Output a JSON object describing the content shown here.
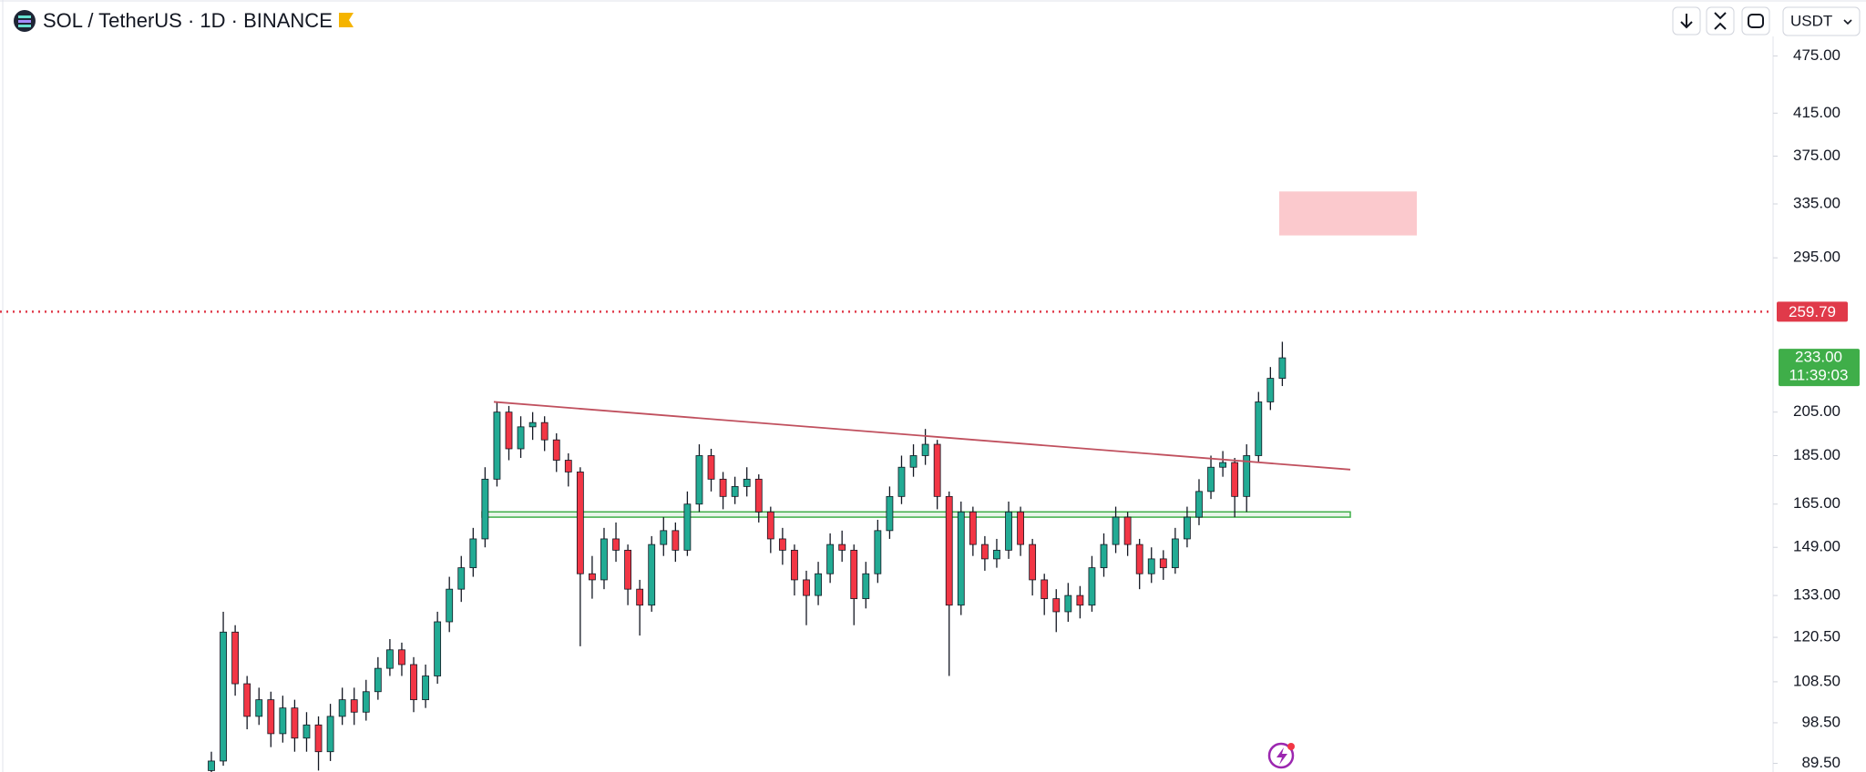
{
  "chart_data": {
    "type": "candlestick",
    "title": "SOL / TetherUS · 1D · BINANCE",
    "currency": "USDT",
    "log_scale": true,
    "up_color": "#22ab94",
    "down_color": "#f23645",
    "ylim": [
      87.7,
      542
    ],
    "yticks": [
      {
        "value": 475,
        "label": "475.00"
      },
      {
        "value": 415,
        "label": "415.00"
      },
      {
        "value": 375,
        "label": "375.00"
      },
      {
        "value": 335,
        "label": "335.00"
      },
      {
        "value": 295,
        "label": "295.00"
      },
      {
        "value": 205,
        "label": "205.00"
      },
      {
        "value": 185,
        "label": "185.00"
      },
      {
        "value": 165,
        "label": "165.00"
      },
      {
        "value": 149,
        "label": "149.00"
      },
      {
        "value": 133,
        "label": "133.00"
      },
      {
        "value": 120.5,
        "label": "120.50"
      },
      {
        "value": 108.5,
        "label": "108.50"
      },
      {
        "value": 98.5,
        "label": "98.50"
      },
      {
        "value": 89.5,
        "label": "89.50"
      }
    ],
    "open": [
      88,
      90,
      122,
      108,
      100,
      104,
      96,
      102,
      95,
      98,
      92,
      100,
      104,
      101,
      106,
      112,
      117,
      113,
      104,
      110,
      125,
      135,
      142,
      152,
      175,
      205,
      188,
      198,
      200,
      192,
      183,
      178,
      140,
      138,
      152,
      148,
      135,
      130,
      150,
      155,
      148,
      165,
      185,
      175,
      168,
      172,
      175,
      162,
      152,
      148,
      138,
      133,
      140,
      150,
      148,
      132,
      140,
      155,
      168,
      180,
      185,
      190,
      168,
      130,
      162,
      150,
      145,
      148,
      162,
      150,
      138,
      132,
      128,
      133,
      130,
      142,
      150,
      160,
      150,
      140,
      145,
      142,
      152,
      160,
      170,
      180,
      182,
      168,
      185,
      210,
      222
    ],
    "high": [
      92,
      128,
      124,
      110,
      107,
      106,
      105,
      104,
      101,
      100,
      103,
      107,
      107,
      109,
      115,
      120,
      119,
      115,
      113,
      128,
      139,
      146,
      156,
      180,
      210,
      208,
      203,
      205,
      203,
      195,
      186,
      180,
      146,
      156,
      158,
      150,
      138,
      153,
      160,
      158,
      170,
      190,
      188,
      178,
      176,
      180,
      177,
      164,
      156,
      150,
      141,
      144,
      154,
      155,
      150,
      144,
      159,
      172,
      185,
      190,
      197,
      192,
      170,
      166,
      164,
      153,
      152,
      166,
      164,
      152,
      140,
      135,
      137,
      136,
      146,
      154,
      164,
      162,
      152,
      149,
      148,
      156,
      164,
      175,
      185,
      187,
      184,
      190,
      215,
      228,
      242
    ],
    "low": [
      86,
      89,
      105,
      97,
      98,
      93,
      94,
      92,
      92,
      88,
      90,
      98,
      98,
      99,
      104,
      110,
      110,
      101,
      102,
      108,
      122,
      131,
      139,
      149,
      172,
      183,
      184,
      192,
      187,
      178,
      172,
      118,
      132,
      135,
      144,
      130,
      121,
      128,
      146,
      144,
      146,
      162,
      170,
      163,
      165,
      168,
      158,
      147,
      143,
      133,
      124,
      130,
      137,
      144,
      124,
      129,
      137,
      152,
      165,
      176,
      181,
      163,
      110,
      127,
      146,
      141,
      142,
      145,
      146,
      133,
      127,
      122,
      125,
      126,
      128,
      139,
      147,
      146,
      135,
      137,
      138,
      140,
      149,
      157,
      167,
      176,
      160,
      162,
      182,
      206,
      218
    ],
    "close": [
      90,
      122,
      108,
      100,
      104,
      96,
      102,
      95,
      98,
      92,
      100,
      104,
      101,
      106,
      112,
      117,
      113,
      104,
      110,
      125,
      135,
      142,
      152,
      175,
      205,
      188,
      198,
      200,
      192,
      183,
      178,
      140,
      138,
      152,
      148,
      135,
      130,
      150,
      155,
      148,
      165,
      185,
      175,
      168,
      172,
      175,
      162,
      152,
      148,
      138,
      133,
      140,
      150,
      148,
      132,
      140,
      155,
      168,
      180,
      185,
      190,
      168,
      130,
      162,
      150,
      145,
      148,
      162,
      150,
      138,
      132,
      128,
      133,
      130,
      142,
      150,
      160,
      150,
      140,
      145,
      142,
      152,
      160,
      170,
      180,
      182,
      168,
      185,
      210,
      222,
      233
    ],
    "alert_line": {
      "value": 259.79,
      "color": "#e03a4a"
    },
    "last_price": {
      "value": 233,
      "label": "233.00",
      "countdown": "11:39:03",
      "color": "#3fae49"
    },
    "trendline": {
      "values": [
        210,
        179
      ],
      "color": "#c0505e"
    },
    "support_zone": {
      "values": [
        160,
        162
      ],
      "color": "#3fae49"
    },
    "target_zone": {
      "values": [
        311,
        345
      ],
      "color": "#fbc9cd"
    }
  }
}
